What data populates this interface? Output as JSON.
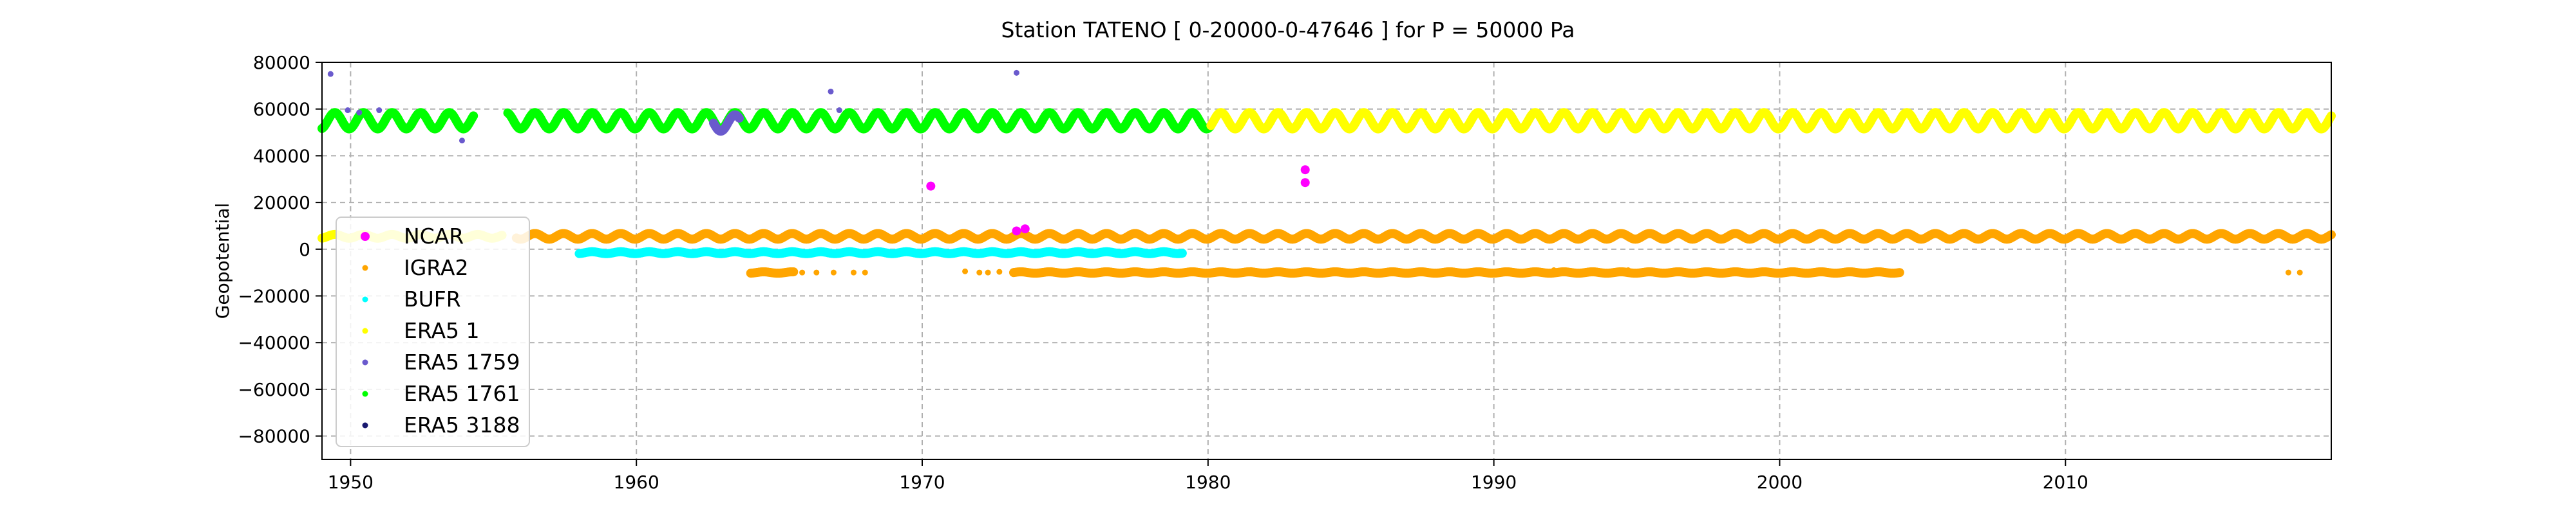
{
  "chart_data": {
    "type": "scatter",
    "title": "Station  TATENO [ 0-20000-0-47646 ]  for P = 50000 Pa",
    "xlabel": "",
    "ylabel": "Geopotential",
    "xlim": [
      1949.0,
      2019.3
    ],
    "ylim": [
      -90000,
      80000
    ],
    "xticks": [
      1950,
      1960,
      1970,
      1980,
      1990,
      2000,
      2010
    ],
    "yticks": [
      -80000,
      -60000,
      -40000,
      -20000,
      0,
      20000,
      40000,
      60000,
      80000
    ],
    "grid": true,
    "legend_position": "lower-left",
    "series": [
      {
        "name": "NCAR",
        "color": "#ff00ff",
        "points": [
          [
            1970.3,
            27000
          ],
          [
            1973.3,
            7800
          ],
          [
            1973.6,
            8700
          ],
          [
            1983.4,
            34000
          ],
          [
            1983.4,
            28500
          ]
        ],
        "bands": []
      },
      {
        "name": "IGRA2",
        "color": "#ffa500",
        "points": [
          [
            1964.0,
            -10000
          ],
          [
            1964.5,
            -10000
          ],
          [
            1965.2,
            -10000
          ],
          [
            1965.8,
            -10000
          ],
          [
            1966.3,
            -10000
          ],
          [
            1966.9,
            -10000
          ],
          [
            1967.6,
            -10000
          ],
          [
            1968.0,
            -10000
          ],
          [
            1971.5,
            -9500
          ],
          [
            1972.0,
            -10000
          ],
          [
            1972.3,
            -10000
          ],
          [
            1972.7,
            -9700
          ],
          [
            1981.5,
            -9000
          ],
          [
            1992.1,
            -9000
          ],
          [
            1994.7,
            -9000
          ],
          [
            2017.8,
            -10000
          ],
          [
            2018.2,
            -10000
          ]
        ],
        "bands": [
          {
            "x": [
              1955.8,
              2019.3
            ],
            "center": 5500,
            "amplitude": 1200
          },
          {
            "x": [
              1964.0,
              1965.5
            ],
            "center": -10000,
            "amplitude": 300
          },
          {
            "x": [
              1973.2,
              2004.2
            ],
            "center": -10000,
            "amplitude": 300
          }
        ]
      },
      {
        "name": "BUFR",
        "color": "#00ffff",
        "points": [],
        "bands": [
          {
            "x": [
              1958.0,
              1979.1
            ],
            "center": -1500,
            "amplitude": 400
          }
        ]
      },
      {
        "name": "ERA5 1",
        "color": "#ffff00",
        "points": [],
        "bands": [
          {
            "x": [
              1949.0,
              1955.3
            ],
            "center": 5500,
            "amplitude": 800
          },
          {
            "x": [
              1980.1,
              2019.3
            ],
            "center": 55000,
            "amplitude": 3500
          }
        ]
      },
      {
        "name": "ERA5 1759",
        "color": "#6a5acd",
        "points": [
          [
            1949.3,
            75000
          ],
          [
            1949.9,
            59500
          ],
          [
            1950.3,
            58500
          ],
          [
            1951.0,
            59500
          ],
          [
            1953.9,
            46500
          ],
          [
            1966.8,
            67500
          ],
          [
            1967.1,
            59500
          ],
          [
            1973.3,
            75500
          ]
        ],
        "bands": [
          {
            "x": [
              1962.7,
              1963.6
            ],
            "center": 54000,
            "amplitude": 3500
          }
        ]
      },
      {
        "name": "ERA5 1761",
        "color": "#00ff00",
        "points": [],
        "bands": [
          {
            "x": [
              1949.0,
              1954.3
            ],
            "center": 55000,
            "amplitude": 3500
          },
          {
            "x": [
              1955.5,
              1980.1
            ],
            "center": 55000,
            "amplitude": 3500
          }
        ]
      },
      {
        "name": "ERA5 3188",
        "color": "#191970",
        "points": [],
        "bands": []
      }
    ]
  }
}
